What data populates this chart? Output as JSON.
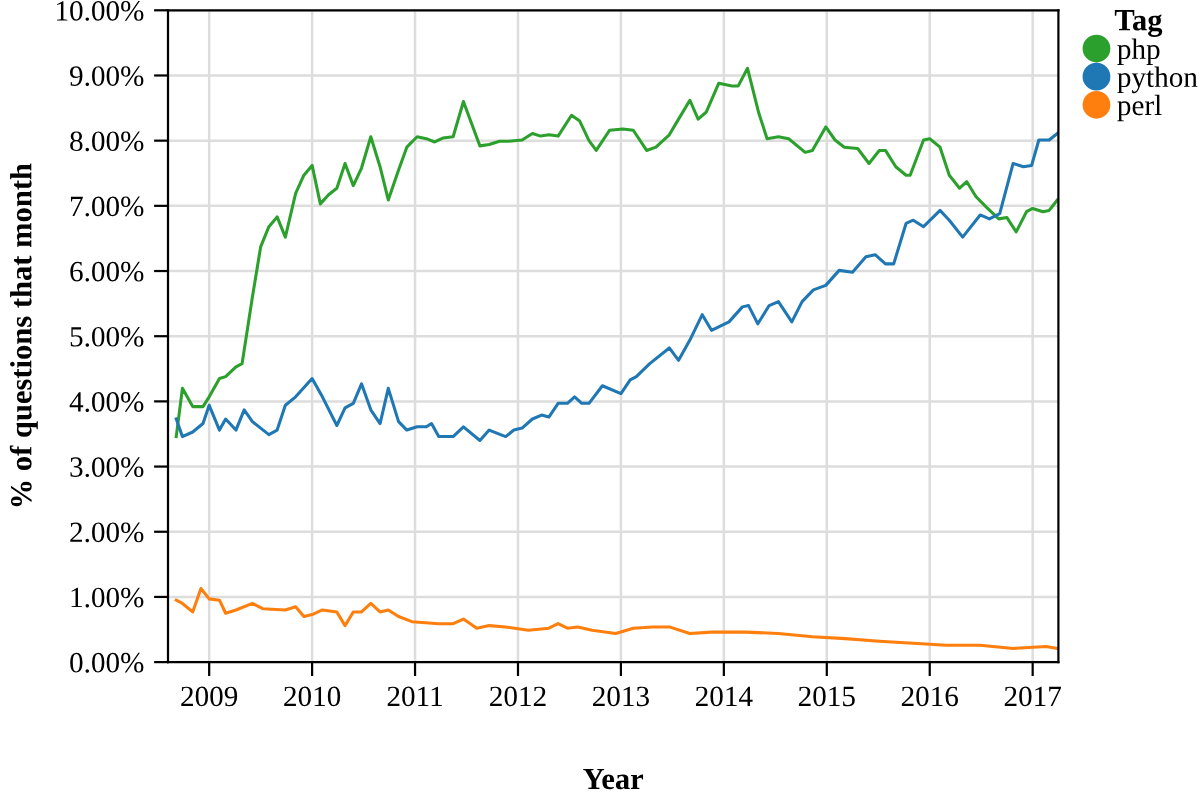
{
  "chart_data": {
    "type": "line",
    "xlabel": "Year",
    "ylabel": "% of questions that month",
    "legend_title": "Tag",
    "legend": "top right",
    "grid": true,
    "xlim": [
      2008.6,
      2017.25
    ],
    "xticks": [
      2009,
      2010,
      2011,
      2012,
      2013,
      2014,
      2015,
      2016,
      2017
    ],
    "ylim": [
      0,
      10
    ],
    "yticks": [
      {
        "value": 0,
        "label": "0.00%"
      },
      {
        "value": 1,
        "label": "1.00%"
      },
      {
        "value": 2,
        "label": "2.00%"
      },
      {
        "value": 3,
        "label": "3.00%"
      },
      {
        "value": 4,
        "label": "4.00%"
      },
      {
        "value": 5,
        "label": "5.00%"
      },
      {
        "value": 6,
        "label": "6.00%"
      },
      {
        "value": 7,
        "label": "7.00%"
      },
      {
        "value": 8,
        "label": "8.00%"
      },
      {
        "value": 9,
        "label": "9.00%"
      },
      {
        "value": 10,
        "label": "10.00%"
      }
    ],
    "series": [
      {
        "name": "php",
        "color": "#2ca02c",
        "x": [
          2008.68,
          2008.74,
          2008.84,
          2008.94,
          2009.0,
          2009.1,
          2009.16,
          2009.26,
          2009.32,
          2009.42,
          2009.5,
          2009.58,
          2009.66,
          2009.74,
          2009.84,
          2009.92,
          2010.0,
          2010.08,
          2010.16,
          2010.24,
          2010.32,
          2010.4,
          2010.48,
          2010.57,
          2010.66,
          2010.74,
          2010.84,
          2010.92,
          2011.02,
          2011.11,
          2011.19,
          2011.27,
          2011.37,
          2011.47,
          2011.55,
          2011.63,
          2011.72,
          2011.82,
          2011.91,
          2012.04,
          2012.14,
          2012.22,
          2012.3,
          2012.39,
          2012.52,
          2012.6,
          2012.69,
          2012.76,
          2012.89,
          2013.02,
          2013.12,
          2013.25,
          2013.34,
          2013.47,
          2013.56,
          2013.67,
          2013.75,
          2013.83,
          2013.95,
          2014.08,
          2014.14,
          2014.23,
          2014.34,
          2014.42,
          2014.53,
          2014.63,
          2014.79,
          2014.86,
          2014.99,
          2015.08,
          2015.17,
          2015.3,
          2015.41,
          2015.51,
          2015.57,
          2015.67,
          2015.77,
          2015.81,
          2015.94,
          2016.0,
          2016.1,
          2016.19,
          2016.29,
          2016.36,
          2016.45,
          2016.55,
          2016.67,
          2016.75,
          2016.84,
          2016.94,
          2017.0,
          2017.1,
          2017.16,
          2017.24
        ],
        "values": [
          3.46,
          4.2,
          3.92,
          3.92,
          4.07,
          4.35,
          4.38,
          4.53,
          4.58,
          5.6,
          6.37,
          6.68,
          6.83,
          6.52,
          7.19,
          7.47,
          7.62,
          7.03,
          7.17,
          7.27,
          7.65,
          7.31,
          7.58,
          8.06,
          7.6,
          7.09,
          7.55,
          7.9,
          8.06,
          8.03,
          7.98,
          8.04,
          8.06,
          8.6,
          8.26,
          7.92,
          7.94,
          7.99,
          7.99,
          8.01,
          8.11,
          8.07,
          8.09,
          8.07,
          8.39,
          8.3,
          8.0,
          7.85,
          8.16,
          8.18,
          8.16,
          7.85,
          7.9,
          8.09,
          8.33,
          8.62,
          8.33,
          8.44,
          8.88,
          8.84,
          8.84,
          9.11,
          8.42,
          8.03,
          8.06,
          8.03,
          7.82,
          7.85,
          8.21,
          8.01,
          7.9,
          7.88,
          7.65,
          7.85,
          7.85,
          7.6,
          7.47,
          7.47,
          8.01,
          8.03,
          7.9,
          7.47,
          7.27,
          7.37,
          7.14,
          6.98,
          6.8,
          6.82,
          6.6,
          6.91,
          6.96,
          6.91,
          6.93,
          7.09
        ]
      },
      {
        "name": "python",
        "color": "#1f77b4",
        "x": [
          2008.68,
          2008.74,
          2008.84,
          2008.94,
          2009.0,
          2009.1,
          2009.16,
          2009.26,
          2009.34,
          2009.42,
          2009.58,
          2009.66,
          2009.74,
          2009.84,
          2010.0,
          2010.1,
          2010.24,
          2010.32,
          2010.4,
          2010.48,
          2010.57,
          2010.66,
          2010.74,
          2010.84,
          2010.92,
          2011.02,
          2011.11,
          2011.16,
          2011.23,
          2011.37,
          2011.47,
          2011.63,
          2011.72,
          2011.88,
          2011.96,
          2012.04,
          2012.14,
          2012.23,
          2012.3,
          2012.39,
          2012.48,
          2012.55,
          2012.62,
          2012.69,
          2012.82,
          2013.0,
          2013.09,
          2013.15,
          2013.28,
          2013.47,
          2013.56,
          2013.67,
          2013.79,
          2013.88,
          2014.05,
          2014.18,
          2014.24,
          2014.33,
          2014.44,
          2014.53,
          2014.66,
          2014.76,
          2014.87,
          2014.99,
          2015.12,
          2015.25,
          2015.38,
          2015.47,
          2015.57,
          2015.65,
          2015.77,
          2015.84,
          2015.94,
          2016.1,
          2016.19,
          2016.32,
          2016.49,
          2016.58,
          2016.68,
          2016.81,
          2016.91,
          2016.99,
          2017.06,
          2017.16,
          2017.24
        ],
        "values": [
          3.73,
          3.46,
          3.53,
          3.66,
          3.94,
          3.56,
          3.73,
          3.56,
          3.87,
          3.69,
          3.49,
          3.56,
          3.94,
          4.07,
          4.35,
          4.07,
          3.63,
          3.9,
          3.97,
          4.27,
          3.87,
          3.66,
          4.2,
          3.69,
          3.56,
          3.61,
          3.61,
          3.66,
          3.46,
          3.46,
          3.61,
          3.4,
          3.56,
          3.46,
          3.56,
          3.59,
          3.73,
          3.79,
          3.76,
          3.97,
          3.97,
          4.07,
          3.97,
          3.97,
          4.24,
          4.12,
          4.33,
          4.38,
          4.58,
          4.82,
          4.63,
          4.94,
          5.33,
          5.09,
          5.22,
          5.45,
          5.47,
          5.19,
          5.47,
          5.53,
          5.22,
          5.53,
          5.71,
          5.78,
          6.01,
          5.98,
          6.22,
          6.25,
          6.11,
          6.11,
          6.73,
          6.78,
          6.68,
          6.93,
          6.78,
          6.52,
          6.86,
          6.8,
          6.88,
          7.65,
          7.6,
          7.62,
          8.01,
          8.01,
          8.11
        ]
      },
      {
        "name": "perl",
        "color": "#ff7f0e",
        "x": [
          2008.68,
          2008.74,
          2008.84,
          2008.92,
          2009.0,
          2009.1,
          2009.16,
          2009.26,
          2009.42,
          2009.52,
          2009.74,
          2009.84,
          2009.92,
          2010.0,
          2010.1,
          2010.24,
          2010.32,
          2010.4,
          2010.48,
          2010.57,
          2010.66,
          2010.74,
          2010.84,
          2010.97,
          2011.23,
          2011.37,
          2011.47,
          2011.6,
          2011.72,
          2011.88,
          2012.1,
          2012.3,
          2012.39,
          2012.48,
          2012.58,
          2012.72,
          2012.95,
          2013.12,
          2013.31,
          2013.47,
          2013.67,
          2013.88,
          2014.21,
          2014.53,
          2014.86,
          2015.18,
          2015.51,
          2015.84,
          2016.16,
          2016.49,
          2016.81,
          2017.13,
          2017.24
        ],
        "values": [
          0.95,
          0.9,
          0.77,
          1.13,
          0.97,
          0.95,
          0.75,
          0.8,
          0.9,
          0.82,
          0.8,
          0.85,
          0.7,
          0.73,
          0.8,
          0.77,
          0.56,
          0.77,
          0.77,
          0.9,
          0.77,
          0.8,
          0.7,
          0.62,
          0.59,
          0.59,
          0.66,
          0.52,
          0.56,
          0.54,
          0.49,
          0.52,
          0.59,
          0.52,
          0.54,
          0.49,
          0.44,
          0.52,
          0.54,
          0.54,
          0.44,
          0.46,
          0.46,
          0.44,
          0.39,
          0.36,
          0.32,
          0.29,
          0.26,
          0.26,
          0.21,
          0.24,
          0.21
        ]
      }
    ]
  }
}
